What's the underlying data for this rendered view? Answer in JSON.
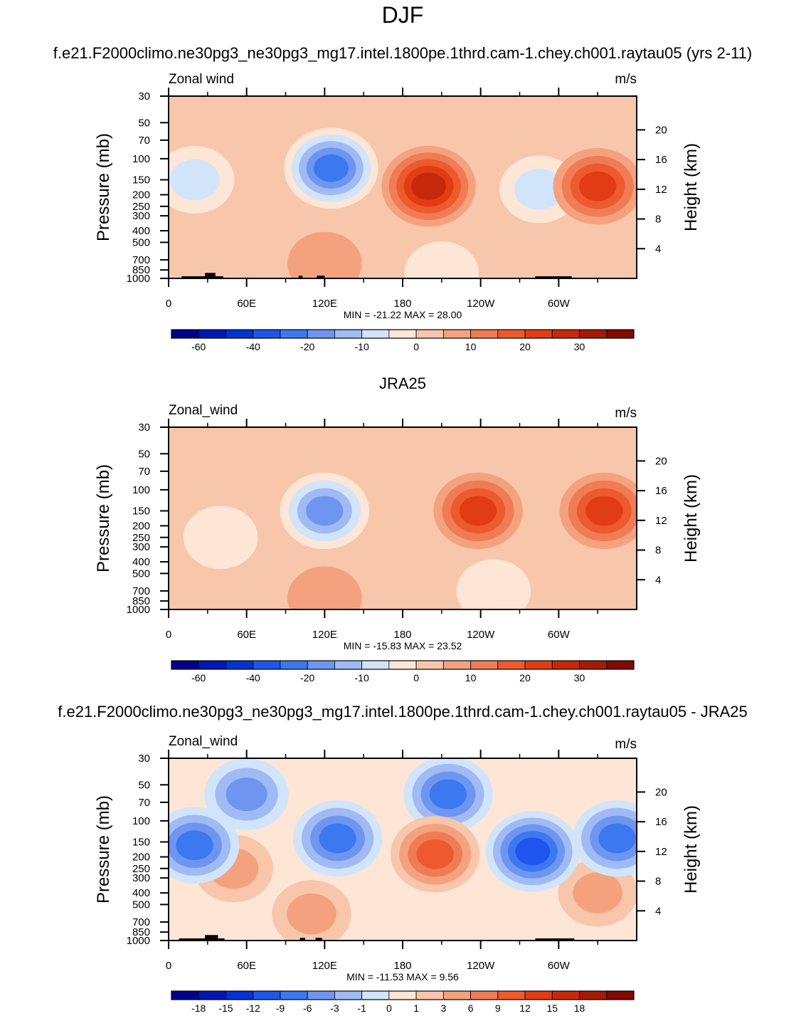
{
  "figure": {
    "season": "DJF"
  },
  "panels": [
    {
      "title": "f.e21.F2000climo.ne30pg3_ne30pg3_mg17.intel.1800pe.1thrd.cam-1.chey.ch001.raytau05 (yrs 2-11)",
      "variable": "Zonal wind",
      "units": "m/s",
      "minmax": "MIN = -21.22  MAX =  28.00",
      "ylabel": "Pressure (mb)",
      "y2label": "Height (km)"
    },
    {
      "title": "JRA25",
      "variable": "Zonal_wind",
      "units": "m/s",
      "minmax": "MIN = -15.83  MAX =  23.52",
      "ylabel": "Pressure (mb)",
      "y2label": "Height (km)"
    },
    {
      "title": "f.e21.F2000climo.ne30pg3_ne30pg3_mg17.intel.1800pe.1thrd.cam-1.chey.ch001.raytau05 - JRA25",
      "variable": "Zonal_wind",
      "units": "m/s",
      "minmax": "MIN = -11.53  MAX =   9.56",
      "ylabel": "Pressure (mb)",
      "y2label": "Height (km)"
    }
  ],
  "chart_data": [
    {
      "type": "heatmap",
      "title": "f.e21.F2000climo.ne30pg3_ne30pg3_mg17.intel.1800pe.1thrd.cam-1.chey.ch001.raytau05 (yrs 2-11)",
      "variable": "Zonal wind",
      "units": "m/s",
      "x_ticks": [
        "0",
        "60E",
        "120E",
        "180",
        "120W",
        "60W"
      ],
      "x_tick_lon": [
        0,
        60,
        120,
        180,
        240,
        300
      ],
      "xlim": [
        0,
        360
      ],
      "y_ticks": [
        "30",
        "50",
        "70",
        "100",
        "150",
        "200",
        "250",
        "300",
        "400",
        "500",
        "700",
        "850",
        "1000"
      ],
      "y_tick_p": [
        30,
        50,
        70,
        100,
        150,
        200,
        250,
        300,
        400,
        500,
        700,
        850,
        1000
      ],
      "ylim": [
        1000,
        30
      ],
      "height_ticks": [
        "4",
        "8",
        "12",
        "16",
        "20"
      ],
      "height_km": [
        4,
        8,
        12,
        16,
        20
      ],
      "min": -21.22,
      "max": 28.0,
      "levels": [
        -70,
        -60,
        -50,
        -40,
        -30,
        -20,
        -15,
        -10,
        -5,
        0,
        5,
        10,
        15,
        20,
        25,
        30,
        35
      ],
      "colorbar_labels": [
        "-60",
        "-40",
        "-20",
        "-10",
        "0",
        "10",
        "20",
        "30"
      ],
      "colorbar_label_bins": [
        1,
        3,
        5,
        7,
        9,
        11,
        13,
        15
      ],
      "features": [
        {
          "lon": 200,
          "p": 170,
          "value": 28.0
        },
        {
          "lon": 330,
          "p": 170,
          "value": 20
        },
        {
          "lon": 125,
          "p": 120,
          "value": -21.22
        },
        {
          "lon": 20,
          "p": 150,
          "value": -8
        },
        {
          "lon": 285,
          "p": 180,
          "value": -7
        },
        {
          "lon": 120,
          "p": 750,
          "value": 6
        },
        {
          "lon": 90,
          "p": 500,
          "value": 4
        },
        {
          "lon": 210,
          "p": 900,
          "value": -5
        }
      ],
      "topography": [
        {
          "lon_from": 10,
          "lon_to": 42,
          "p_top": 960
        },
        {
          "lon_from": 28,
          "lon_to": 36,
          "p_top": 900
        },
        {
          "lon_from": 100,
          "lon_to": 103,
          "p_top": 950
        },
        {
          "lon_from": 114,
          "lon_to": 120,
          "p_top": 950
        },
        {
          "lon_from": 282,
          "lon_to": 310,
          "p_top": 960
        }
      ]
    },
    {
      "type": "heatmap",
      "title": "JRA25",
      "variable": "Zonal_wind",
      "units": "m/s",
      "x_ticks": [
        "0",
        "60E",
        "120E",
        "180",
        "120W",
        "60W"
      ],
      "x_tick_lon": [
        0,
        60,
        120,
        180,
        240,
        300
      ],
      "xlim": [
        0,
        360
      ],
      "y_ticks": [
        "30",
        "50",
        "70",
        "100",
        "150",
        "200",
        "250",
        "300",
        "400",
        "500",
        "700",
        "850",
        "1000"
      ],
      "y_tick_p": [
        30,
        50,
        70,
        100,
        150,
        200,
        250,
        300,
        400,
        500,
        700,
        850,
        1000
      ],
      "ylim": [
        1000,
        30
      ],
      "height_ticks": [
        "4",
        "8",
        "12",
        "16",
        "20"
      ],
      "height_km": [
        4,
        8,
        12,
        16,
        20
      ],
      "min": -15.83,
      "max": 23.52,
      "levels": [
        -70,
        -60,
        -50,
        -40,
        -30,
        -20,
        -15,
        -10,
        -5,
        0,
        5,
        10,
        15,
        20,
        25,
        30,
        35
      ],
      "colorbar_labels": [
        "-60",
        "-40",
        "-20",
        "-10",
        "0",
        "10",
        "20",
        "30"
      ],
      "colorbar_label_bins": [
        1,
        3,
        5,
        7,
        9,
        11,
        13,
        15
      ],
      "features": [
        {
          "lon": 238,
          "p": 150,
          "value": 23.52
        },
        {
          "lon": 335,
          "p": 150,
          "value": 20
        },
        {
          "lon": 120,
          "p": 150,
          "value": -15.83
        },
        {
          "lon": 40,
          "p": 250,
          "value": -4
        },
        {
          "lon": 120,
          "p": 800,
          "value": 6
        },
        {
          "lon": 200,
          "p": 40,
          "value": 3
        },
        {
          "lon": 250,
          "p": 700,
          "value": -4
        }
      ],
      "topography": []
    },
    {
      "type": "heatmap",
      "title": "f.e21.F2000climo.ne30pg3_ne30pg3_mg17.intel.1800pe.1thrd.cam-1.chey.ch001.raytau05 - JRA25",
      "variable": "Zonal_wind",
      "units": "m/s",
      "x_ticks": [
        "0",
        "60E",
        "120E",
        "180",
        "120W",
        "60W"
      ],
      "x_tick_lon": [
        0,
        60,
        120,
        180,
        240,
        300
      ],
      "xlim": [
        0,
        360
      ],
      "y_ticks": [
        "30",
        "50",
        "70",
        "100",
        "150",
        "200",
        "250",
        "300",
        "400",
        "500",
        "700",
        "850",
        "1000"
      ],
      "y_tick_p": [
        30,
        50,
        70,
        100,
        150,
        200,
        250,
        300,
        400,
        500,
        700,
        850,
        1000
      ],
      "ylim": [
        1000,
        30
      ],
      "height_ticks": [
        "4",
        "8",
        "12",
        "16",
        "20"
      ],
      "height_km": [
        4,
        8,
        12,
        16,
        20
      ],
      "min": -11.53,
      "max": 9.56,
      "levels": [
        -21,
        -18,
        -15,
        -12,
        -9,
        -6,
        -3,
        -1,
        0,
        1,
        3,
        6,
        9,
        12,
        15,
        18,
        21
      ],
      "colorbar_labels": [
        "-18",
        "-15",
        "-12",
        "-9",
        "-6",
        "-3",
        "-1",
        "0",
        "1",
        "3",
        "6",
        "9",
        "12",
        "15",
        "18"
      ],
      "colorbar_label_bins": [
        1,
        2,
        3,
        4,
        5,
        6,
        7,
        8,
        9,
        10,
        11,
        12,
        13,
        14,
        15
      ],
      "features": [
        {
          "lon": 205,
          "p": 190,
          "value": 9.56
        },
        {
          "lon": 280,
          "p": 180,
          "value": -11.53
        },
        {
          "lon": 130,
          "p": 140,
          "value": -9
        },
        {
          "lon": 20,
          "p": 160,
          "value": -8
        },
        {
          "lon": 345,
          "p": 140,
          "value": -7
        },
        {
          "lon": 215,
          "p": 60,
          "value": -8
        },
        {
          "lon": 60,
          "p": 60,
          "value": -5
        },
        {
          "lon": 50,
          "p": 250,
          "value": 4
        },
        {
          "lon": 330,
          "p": 400,
          "value": 4
        },
        {
          "lon": 110,
          "p": 600,
          "value": 3
        }
      ],
      "topography": [
        {
          "lon_from": 8,
          "lon_to": 43,
          "p_top": 960
        },
        {
          "lon_from": 28,
          "lon_to": 38,
          "p_top": 900
        },
        {
          "lon_from": 101,
          "lon_to": 105,
          "p_top": 950
        },
        {
          "lon_from": 113,
          "lon_to": 118,
          "p_top": 950
        },
        {
          "lon_from": 282,
          "lon_to": 312,
          "p_top": 960
        }
      ]
    }
  ],
  "colors": {
    "scale": [
      "#00008c",
      "#0019b4",
      "#0532d2",
      "#1e55ec",
      "#3c78f0",
      "#6e96f0",
      "#a0baf4",
      "#d2e4fa",
      "#fde6d6",
      "#f8c6aa",
      "#f4a27e",
      "#f07c55",
      "#ec5a2e",
      "#e13c14",
      "#c8280a",
      "#a51a05",
      "#820a00"
    ]
  }
}
